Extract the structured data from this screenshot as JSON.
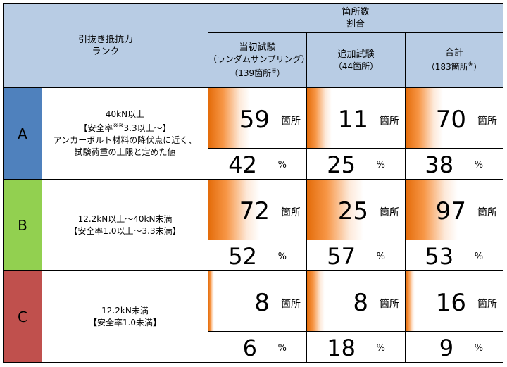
{
  "header": {
    "rank_col": [
      "引抜き抵抗力",
      "ランク"
    ],
    "group": [
      "箇所数",
      "割合"
    ],
    "cols": [
      {
        "name": "当初試験",
        "sub": "（ランダムサンプリング）",
        "n": "（139箇所",
        "mark": "※",
        "close": "）"
      },
      {
        "name": "追加試験",
        "sub": "（44箇所）",
        "n": "",
        "mark": "",
        "close": ""
      },
      {
        "name": "合計",
        "sub": "",
        "n": "（183箇所",
        "mark": "※",
        "close": "）"
      }
    ]
  },
  "colors": {
    "header": "#b8cce4",
    "A": "#4f81bd",
    "B": "#92d050",
    "C": "#c0504d",
    "bar_edge": "#e46c0a",
    "bar_fade": "#ffffff"
  },
  "unit_count": "箇所",
  "unit_pct": "%",
  "rows": [
    {
      "rank": "A",
      "desc": {
        "l1": "40kN以上",
        "l2a": "【安全率",
        "l2mark": "※※",
        "l2b": "3.3以上～】",
        "l3": "アンカーボルト材料の降伏点に近く、",
        "l4": "試験荷重の上限と定めた値"
      },
      "counts": [
        "59",
        "11",
        "70"
      ],
      "pcts": [
        "42",
        "25",
        "38"
      ],
      "share": [
        0.42,
        0.25,
        0.38
      ]
    },
    {
      "rank": "B",
      "desc": {
        "l1": "12.2kN以上～40kN未満",
        "l2a": "【安全率1.0以上～3.3未満】",
        "l2mark": "",
        "l2b": "",
        "l3": "",
        "l4": ""
      },
      "counts": [
        "72",
        "25",
        "97"
      ],
      "pcts": [
        "52",
        "57",
        "53"
      ],
      "share": [
        0.52,
        0.57,
        0.53
      ]
    },
    {
      "rank": "C",
      "desc": {
        "l1": "12.2kN未満",
        "l2a": "【安全率1.0未満】",
        "l2mark": "",
        "l2b": "",
        "l3": "",
        "l4": ""
      },
      "counts": [
        "8",
        "8",
        "16"
      ],
      "pcts": [
        "6",
        "18",
        "9"
      ],
      "share": [
        0.06,
        0.18,
        0.09
      ]
    }
  ]
}
